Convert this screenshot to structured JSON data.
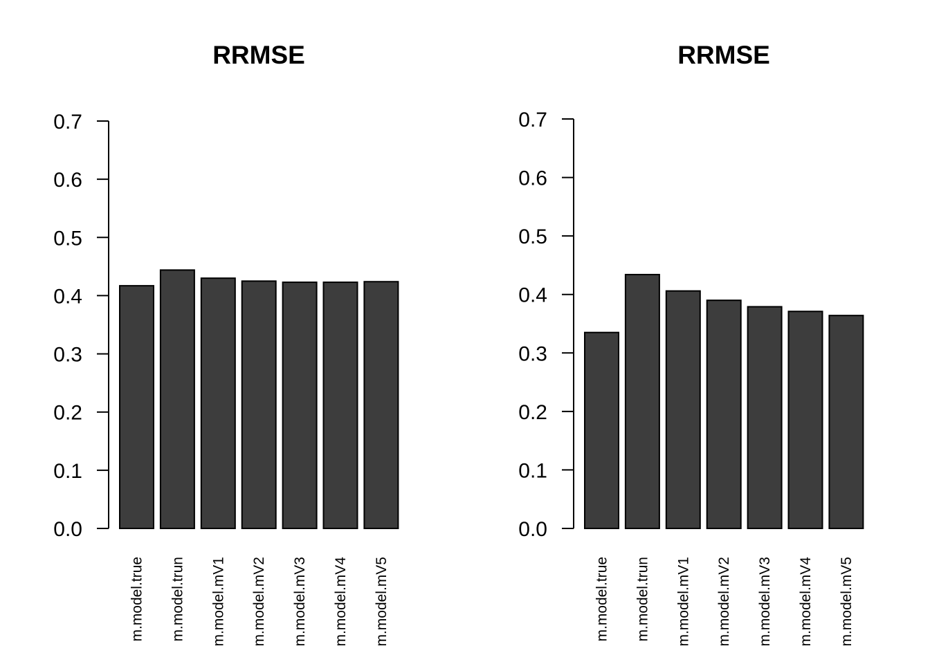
{
  "colors": {
    "bar_fill": "#3d3d3d",
    "bar_stroke": "#000000",
    "background": "#ffffff"
  },
  "chart_data": [
    {
      "type": "bar",
      "title": "RRMSE",
      "xlabel": "",
      "ylabel": "",
      "categories": [
        "m.model.true",
        "m.model.trun",
        "m.model.mV1",
        "m.model.mV2",
        "m.model.mV3",
        "m.model.mV4",
        "m.model.mV5"
      ],
      "values": [
        0.417,
        0.444,
        0.43,
        0.425,
        0.423,
        0.423,
        0.424
      ],
      "ylim": [
        0,
        0.7
      ],
      "yticks": [
        "0.0",
        "0.1",
        "0.2",
        "0.3",
        "0.4",
        "0.5",
        "0.6",
        "0.7"
      ],
      "grid": false,
      "legend": "none"
    },
    {
      "type": "bar",
      "title": "RRMSE",
      "xlabel": "",
      "ylabel": "",
      "categories": [
        "m.model.true",
        "m.model.trun",
        "m.model.mV1",
        "m.model.mV2",
        "m.model.mV3",
        "m.model.mV4",
        "m.model.mV5"
      ],
      "values": [
        0.335,
        0.434,
        0.406,
        0.39,
        0.379,
        0.371,
        0.364
      ],
      "ylim": [
        0,
        0.7
      ],
      "yticks": [
        "0.0",
        "0.1",
        "0.2",
        "0.3",
        "0.4",
        "0.5",
        "0.6",
        "0.7"
      ],
      "grid": false,
      "legend": "none"
    }
  ]
}
